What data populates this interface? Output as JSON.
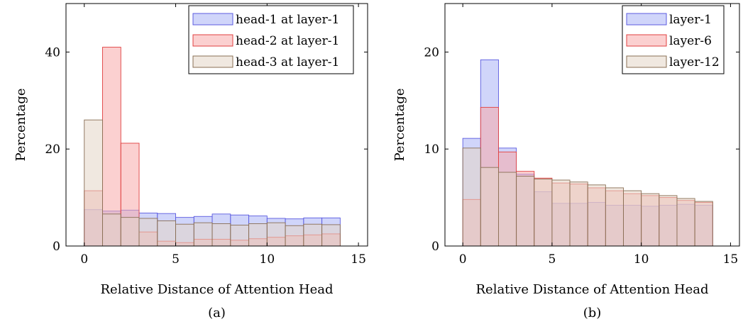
{
  "chart_data": [
    {
      "type": "bar",
      "panel": "a",
      "caption": "(a)",
      "xlabel": "Relative Distance of Attention Head",
      "ylabel": "Percentage",
      "xlim": [
        -1,
        15.5
      ],
      "ylim": [
        0,
        50
      ],
      "xticks": [
        0,
        5,
        10,
        15
      ],
      "yticks": [
        0,
        20,
        40
      ],
      "bin_edges": [
        0,
        1,
        2,
        3,
        4,
        5,
        6,
        7,
        8,
        9,
        10,
        11,
        12,
        13,
        14
      ],
      "legend_position": "top-right",
      "series": [
        {
          "name": "head-1 at layer-1",
          "fill": "#aab2f5",
          "stroke": "#5b5be0",
          "values": [
            7.5,
            7.2,
            7.4,
            6.8,
            6.7,
            5.9,
            6.1,
            6.6,
            6.4,
            6.2,
            5.7,
            5.6,
            5.8,
            5.8
          ]
        },
        {
          "name": "head-2 at layer-1",
          "fill": "#f8aaaa",
          "stroke": "#e04040",
          "values": [
            11.4,
            41.0,
            21.2,
            2.9,
            1.0,
            0.7,
            1.4,
            1.4,
            1.2,
            1.5,
            1.8,
            2.1,
            2.3,
            2.5
          ]
        },
        {
          "name": "head-3 at layer-1",
          "fill": "#e3d6c6",
          "stroke": "#8a6f55",
          "values": [
            26.0,
            6.6,
            5.9,
            5.7,
            5.2,
            4.5,
            4.8,
            4.6,
            4.3,
            4.6,
            4.8,
            4.2,
            4.5,
            4.4
          ]
        }
      ]
    },
    {
      "type": "bar",
      "panel": "b",
      "caption": "(b)",
      "xlabel": "Relative Distance of Attention Head",
      "ylabel": "Percentage",
      "xlim": [
        -1,
        15.5
      ],
      "ylim": [
        0,
        25
      ],
      "xticks": [
        0,
        5,
        10,
        15
      ],
      "yticks": [
        0,
        10,
        20
      ],
      "bin_edges": [
        0,
        1,
        2,
        3,
        4,
        5,
        6,
        7,
        8,
        9,
        10,
        11,
        12,
        13,
        14
      ],
      "legend_position": "top-right",
      "series": [
        {
          "name": "layer-1",
          "fill": "#aab2f5",
          "stroke": "#5b5be0",
          "values": [
            11.1,
            19.2,
            10.1,
            7.4,
            5.6,
            4.4,
            4.4,
            4.5,
            4.2,
            4.2,
            4.1,
            4.2,
            4.3,
            4.2
          ]
        },
        {
          "name": "layer-6",
          "fill": "#f8aaaa",
          "stroke": "#e04040",
          "values": [
            4.8,
            14.3,
            9.7,
            7.7,
            7.0,
            6.5,
            6.4,
            6.0,
            5.7,
            5.4,
            5.2,
            5.0,
            4.7,
            4.5
          ]
        },
        {
          "name": "layer-12",
          "fill": "#e3d6c6",
          "stroke": "#8a6f55",
          "values": [
            10.1,
            8.1,
            7.6,
            7.2,
            6.9,
            6.8,
            6.6,
            6.3,
            6.0,
            5.7,
            5.4,
            5.2,
            4.9,
            4.6
          ]
        }
      ]
    }
  ]
}
